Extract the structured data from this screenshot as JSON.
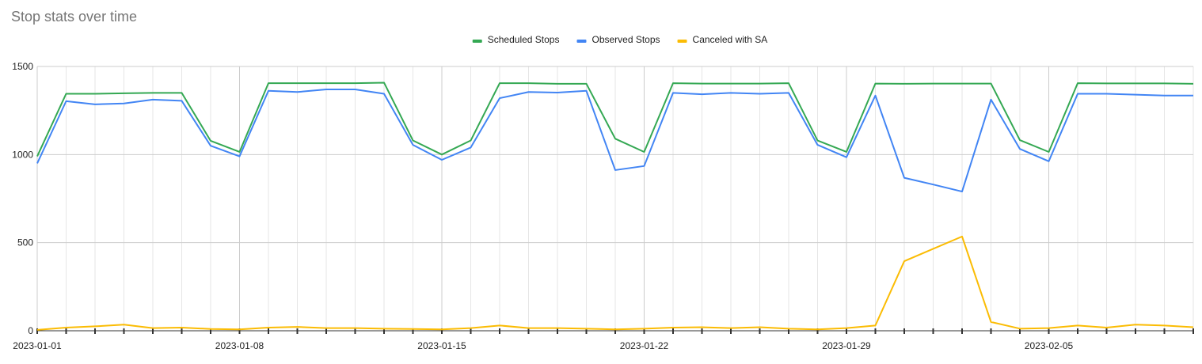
{
  "chart_data": {
    "type": "line",
    "title": "Stop stats over time",
    "xlabel": "",
    "ylabel": "",
    "legend_position": "top-center",
    "grid": true,
    "ylim": [
      0,
      1500
    ],
    "y_ticks": [
      "0",
      "500",
      "1000",
      "1500"
    ],
    "x_tick_labels": [
      "2023-01-01",
      "2023-01-08",
      "2023-01-15",
      "2023-01-22",
      "2023-01-29",
      "2023-02-05"
    ],
    "x": [
      "2023-01-01",
      "2023-01-02",
      "2023-01-03",
      "2023-01-04",
      "2023-01-05",
      "2023-01-06",
      "2023-01-07",
      "2023-01-08",
      "2023-01-09",
      "2023-01-10",
      "2023-01-11",
      "2023-01-12",
      "2023-01-13",
      "2023-01-14",
      "2023-01-15",
      "2023-01-16",
      "2023-01-17",
      "2023-01-18",
      "2023-01-19",
      "2023-01-20",
      "2023-01-21",
      "2023-01-22",
      "2023-01-23",
      "2023-01-24",
      "2023-01-25",
      "2023-01-26",
      "2023-01-27",
      "2023-01-28",
      "2023-01-29",
      "2023-01-30",
      "2023-01-31",
      "2023-02-01",
      "2023-02-02",
      "2023-02-03",
      "2023-02-04",
      "2023-02-05",
      "2023-02-06",
      "2023-02-07",
      "2023-02-08",
      "2023-02-09",
      "2023-02-10"
    ],
    "series": [
      {
        "name": "Scheduled Stops",
        "color": "#34a853",
        "values": [
          990,
          1345,
          1345,
          1348,
          1350,
          1350,
          1078,
          1015,
          1405,
          1405,
          1405,
          1405,
          1408,
          1080,
          1000,
          1080,
          1405,
          1405,
          1402,
          1402,
          1090,
          1015,
          1405,
          1403,
          1403,
          1403,
          1405,
          1080,
          1015,
          1403,
          1402,
          1403,
          1403,
          1403,
          1082,
          1015,
          1405,
          1404,
          1404,
          1404,
          1402
        ]
      },
      {
        "name": "Observed Stops",
        "color": "#4285f4",
        "values": [
          950,
          1303,
          1285,
          1290,
          1312,
          1305,
          1050,
          990,
          1362,
          1355,
          1370,
          1370,
          1345,
          1055,
          970,
          1040,
          1320,
          1355,
          1352,
          1362,
          912,
          935,
          1350,
          1342,
          1350,
          1345,
          1350,
          1055,
          985,
          1335,
          868,
          830,
          790,
          1312,
          1032,
          962,
          1345,
          1345,
          1340,
          1335,
          1335
        ]
      },
      {
        "name": "Canceled with SA",
        "color": "#fbbc04",
        "values": [
          5,
          18,
          25,
          35,
          15,
          18,
          10,
          8,
          18,
          22,
          15,
          15,
          12,
          10,
          8,
          15,
          30,
          15,
          15,
          12,
          8,
          12,
          18,
          20,
          15,
          20,
          12,
          8,
          15,
          30,
          395,
          465,
          535,
          50,
          12,
          15,
          30,
          18,
          35,
          30,
          20
        ]
      }
    ]
  }
}
